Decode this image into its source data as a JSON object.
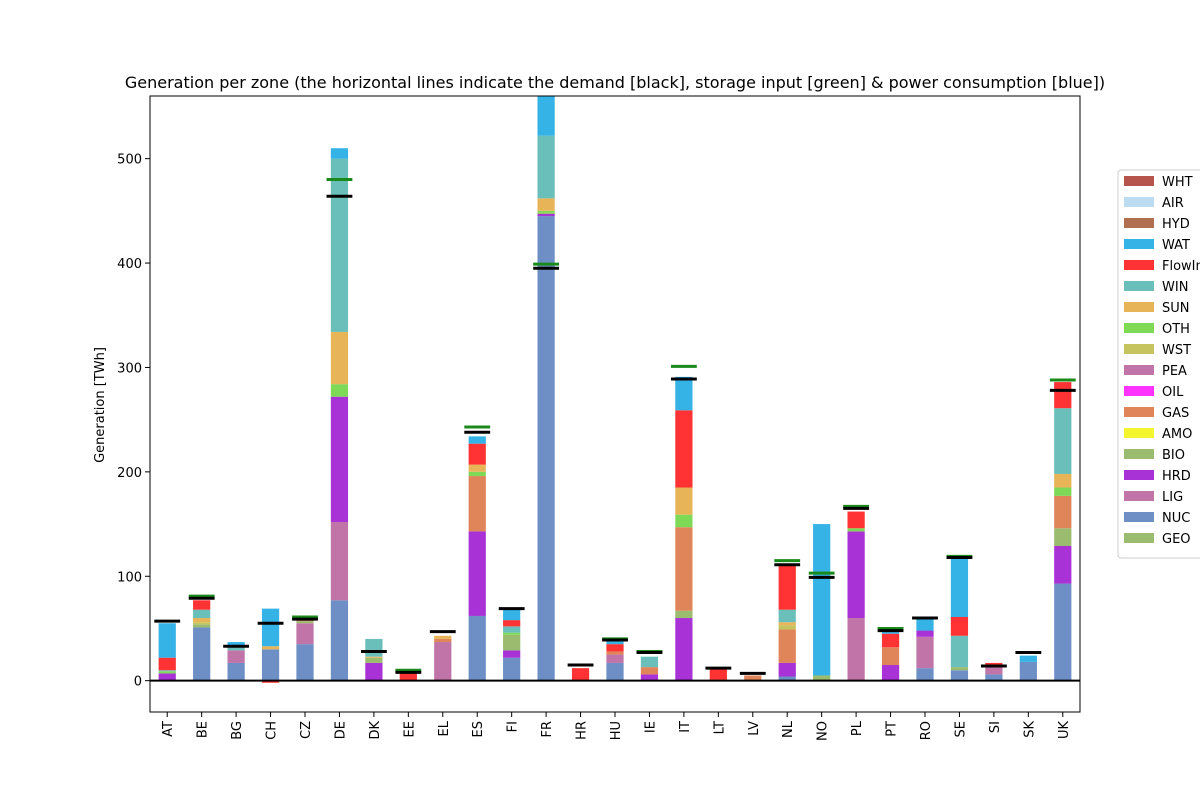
{
  "chart_data": {
    "type": "bar",
    "stacked": true,
    "title": "Generation per zone (the horizontal lines indicate the demand [black], storage input [green] & power consumption [blue])",
    "xlabel": "",
    "ylabel": "Generation [TWh]",
    "ylim": [
      -30,
      560
    ],
    "yticks": [
      0,
      100,
      200,
      300,
      400,
      500
    ],
    "grid": false,
    "legend_position": "right",
    "categories": [
      "AT",
      "BE",
      "BG",
      "CH",
      "CZ",
      "DE",
      "DK",
      "EE",
      "EL",
      "ES",
      "FI",
      "FR",
      "HR",
      "HU",
      "IE",
      "IT",
      "LT",
      "LV",
      "NL",
      "NO",
      "PL",
      "PT",
      "RO",
      "SE",
      "SI",
      "SK",
      "UK"
    ],
    "series": [
      {
        "name": "GEO",
        "color": "#9bbb6e",
        "values": [
          0,
          0,
          0,
          0,
          0,
          0,
          0,
          0,
          0,
          0,
          0,
          0,
          0,
          0,
          0,
          0,
          0,
          0,
          0,
          0,
          0,
          0,
          0,
          0,
          0,
          0,
          0
        ]
      },
      {
        "name": "NUC",
        "color": "#6e8fc6",
        "values": [
          0,
          51,
          17,
          30,
          35,
          77,
          0,
          0,
          0,
          62,
          22,
          445,
          0,
          17,
          0,
          0,
          0,
          0,
          4,
          0,
          0,
          0,
          12,
          10,
          6,
          18,
          93
        ]
      },
      {
        "name": "LIG",
        "color": "#c174a8",
        "values": [
          0,
          0,
          12,
          0,
          20,
          75,
          0,
          0,
          37,
          0,
          0,
          0,
          0,
          8,
          0,
          0,
          0,
          0,
          0,
          0,
          60,
          0,
          30,
          0,
          8,
          0,
          0
        ]
      },
      {
        "name": "HRD",
        "color": "#a832d6",
        "values": [
          7,
          0,
          0,
          0,
          0,
          120,
          17,
          0,
          0,
          81,
          7,
          2,
          0,
          0,
          6,
          60,
          0,
          0,
          13,
          0,
          83,
          15,
          6,
          0,
          0,
          0,
          36
        ]
      },
      {
        "name": "BIO",
        "color": "#9bbb6e",
        "values": [
          0,
          3,
          0,
          0,
          2,
          0,
          5,
          0,
          0,
          0,
          15,
          1,
          0,
          0,
          0,
          7,
          0,
          0,
          0,
          5,
          0,
          0,
          0,
          3,
          0,
          0,
          17
        ]
      },
      {
        "name": "AMO",
        "color": "#f5f52e",
        "values": [
          0,
          0,
          0,
          0,
          0,
          0,
          0,
          0,
          0,
          0,
          0,
          0,
          0,
          0,
          0,
          0,
          0,
          0,
          0,
          0,
          0,
          0,
          0,
          0,
          0,
          0,
          0
        ]
      },
      {
        "name": "GAS",
        "color": "#e0845a",
        "values": [
          0,
          0,
          0,
          0,
          3,
          0,
          0,
          0,
          3,
          53,
          0,
          0,
          0,
          3,
          7,
          80,
          1,
          5,
          32,
          0,
          0,
          17,
          0,
          0,
          0,
          0,
          31
        ]
      },
      {
        "name": "OIL",
        "color": "#ff33ff",
        "values": [
          0,
          0,
          0,
          0,
          0,
          0,
          0,
          0,
          0,
          0,
          0,
          0,
          0,
          0,
          0,
          0,
          0,
          0,
          0,
          0,
          0,
          0,
          0,
          0,
          0,
          0,
          0
        ]
      },
      {
        "name": "PEA",
        "color": "#c174a8",
        "values": [
          0,
          0,
          0,
          0,
          0,
          0,
          0,
          0,
          0,
          0,
          0,
          0,
          0,
          0,
          0,
          0,
          0,
          0,
          0,
          0,
          0,
          0,
          0,
          0,
          0,
          0,
          0
        ]
      },
      {
        "name": "WST",
        "color": "#c6c45e",
        "values": [
          0,
          2,
          0,
          0,
          0,
          0,
          0,
          0,
          0,
          0,
          0,
          0,
          0,
          0,
          0,
          0,
          0,
          0,
          4,
          0,
          0,
          0,
          0,
          0,
          0,
          0,
          0
        ]
      },
      {
        "name": "OTH",
        "color": "#7ed957",
        "values": [
          2,
          0,
          0,
          0,
          0,
          12,
          0,
          0,
          0,
          4,
          2,
          2,
          0,
          0,
          0,
          12,
          0,
          0,
          0,
          0,
          3,
          0,
          0,
          0,
          0,
          0,
          8
        ]
      },
      {
        "name": "SUN",
        "color": "#e8b458",
        "values": [
          0,
          4,
          0,
          3,
          2,
          50,
          1,
          0,
          3,
          7,
          0,
          12,
          0,
          0,
          0,
          26,
          0,
          0,
          3,
          0,
          0,
          0,
          0,
          0,
          0,
          0,
          13
        ]
      },
      {
        "name": "WIN",
        "color": "#6bbfbb",
        "values": [
          1,
          8,
          5,
          0,
          0,
          166,
          17,
          0,
          0,
          0,
          6,
          60,
          0,
          0,
          10,
          0,
          0,
          0,
          12,
          0,
          0,
          0,
          0,
          30,
          0,
          0,
          63
        ]
      },
      {
        "name": "FlowIn",
        "color": "#ff3333",
        "values": [
          12,
          9,
          0,
          -2,
          0,
          0,
          0,
          9,
          0,
          20,
          6,
          0,
          12,
          7,
          0,
          74,
          11,
          0,
          43,
          0,
          16,
          13,
          0,
          18,
          3,
          0,
          25
        ]
      },
      {
        "name": "WAT",
        "color": "#35b2e6",
        "values": [
          33,
          0,
          3,
          36,
          0,
          10,
          0,
          0,
          0,
          7,
          10,
          40,
          0,
          3,
          0,
          32,
          0,
          0,
          0,
          145,
          0,
          4,
          11,
          56,
          0,
          6,
          0
        ]
      },
      {
        "name": "HYD",
        "color": "#b07050",
        "values": [
          0,
          0,
          0,
          0,
          0,
          0,
          0,
          0,
          0,
          0,
          0,
          0,
          0,
          0,
          0,
          0,
          0,
          0,
          0,
          0,
          0,
          0,
          0,
          0,
          0,
          0,
          0
        ]
      },
      {
        "name": "AIR",
        "color": "#bcdcf2",
        "values": [
          0,
          0,
          0,
          0,
          0,
          0,
          0,
          0,
          0,
          0,
          0,
          0,
          0,
          0,
          0,
          0,
          0,
          0,
          0,
          0,
          0,
          0,
          0,
          0,
          0,
          0,
          0
        ]
      },
      {
        "name": "WHT",
        "color": "#b5554c",
        "values": [
          0,
          0,
          0,
          0,
          0,
          0,
          0,
          0,
          0,
          0,
          0,
          0,
          0,
          0,
          0,
          0,
          0,
          0,
          0,
          0,
          0,
          0,
          0,
          0,
          0,
          0,
          0
        ]
      }
    ],
    "demand": [
      57,
      79,
      33,
      55,
      59,
      464,
      28,
      8,
      47,
      238,
      69,
      395,
      15,
      39,
      27,
      289,
      12,
      7,
      111,
      99,
      165,
      48,
      60,
      118,
      14,
      27,
      278
    ],
    "storage_input": [
      null,
      81,
      null,
      null,
      61,
      480,
      null,
      10,
      null,
      243,
      null,
      399,
      null,
      40,
      28,
      301,
      null,
      null,
      115,
      103,
      167,
      50,
      null,
      119,
      null,
      null,
      288
    ],
    "legend_order": [
      "WHT",
      "AIR",
      "HYD",
      "WAT",
      "FlowIn",
      "WIN",
      "SUN",
      "OTH",
      "WST",
      "PEA",
      "OIL",
      "GAS",
      "AMO",
      "BIO",
      "HRD",
      "LIG",
      "NUC",
      "GEO"
    ]
  },
  "colors": {
    "demand_line": "#000000",
    "storage_line": "#1a8a1a",
    "axis": "#000000"
  }
}
